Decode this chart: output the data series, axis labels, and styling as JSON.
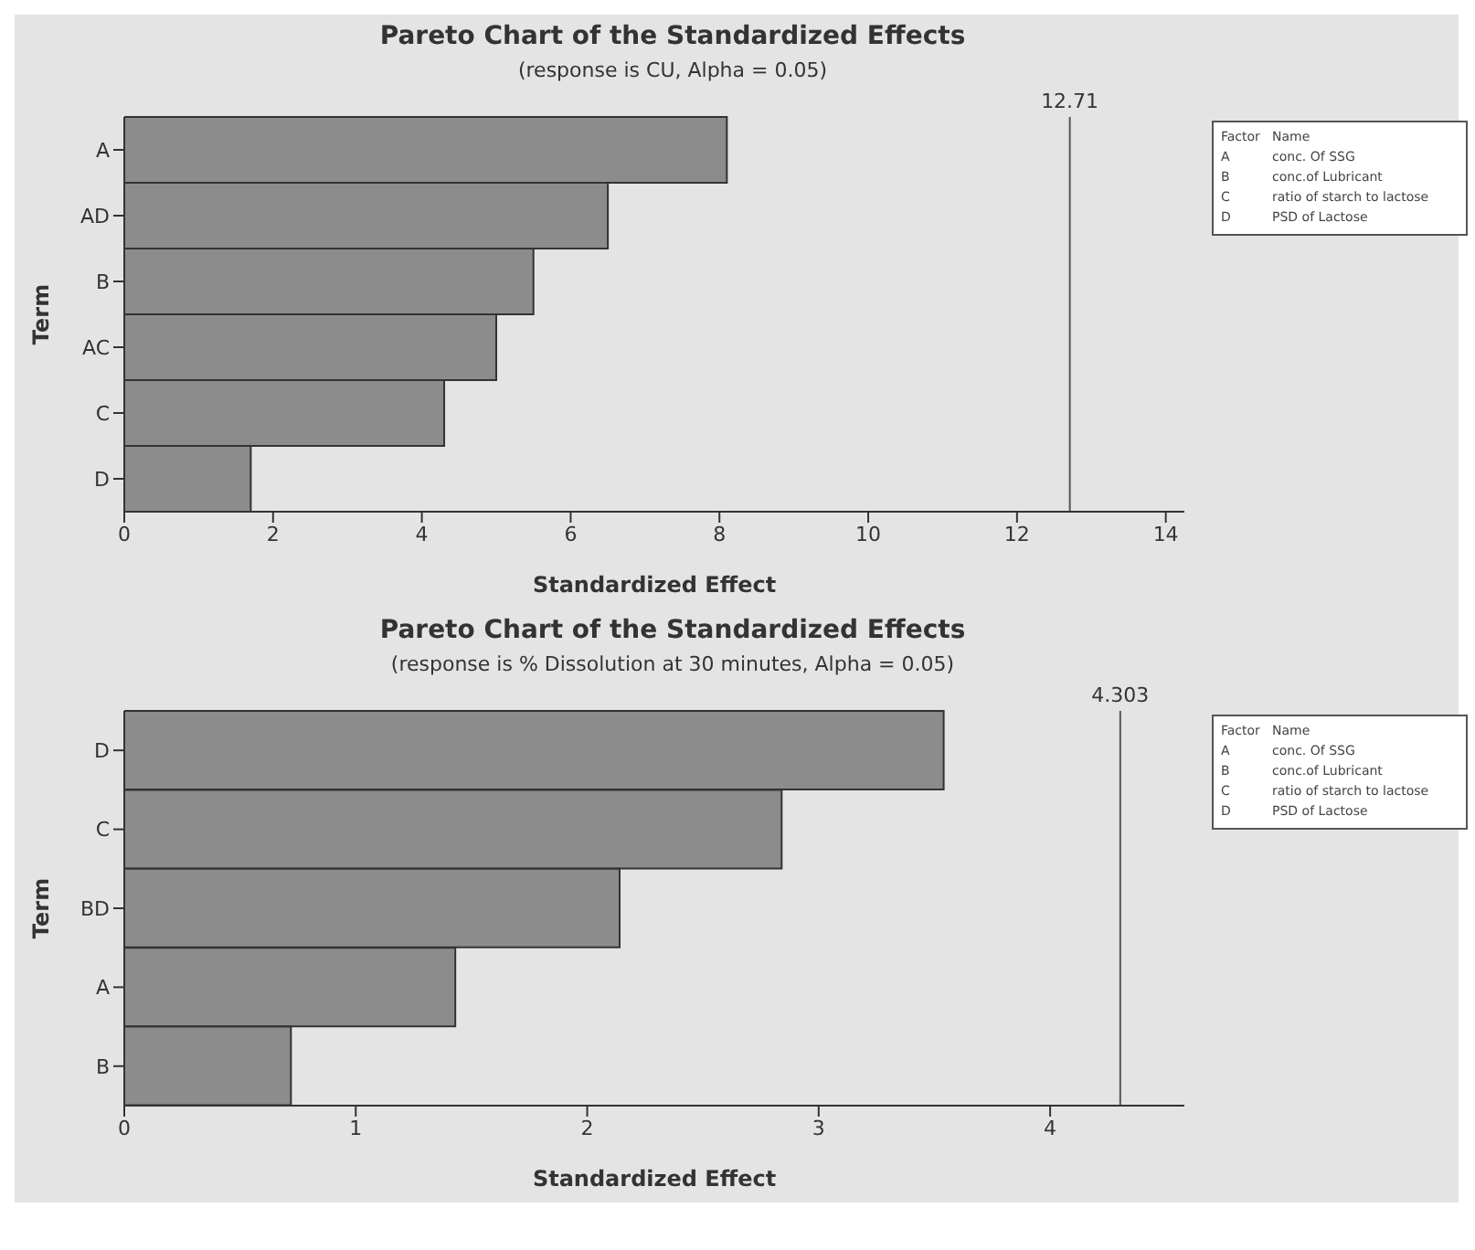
{
  "chart_data": [
    {
      "type": "bar",
      "orientation": "horizontal",
      "title": "Pareto Chart of the Standardized Effects",
      "subtitle": "(response is CU, Alpha = 0.05)",
      "xlabel": "Standardized Effect",
      "ylabel": "Term",
      "categories": [
        "A",
        "AD",
        "B",
        "AC",
        "C",
        "D"
      ],
      "values": [
        8.1,
        6.5,
        5.5,
        5.0,
        4.3,
        1.7
      ],
      "color": "#8c8c8c",
      "xlim": [
        0,
        14.25
      ],
      "xticks": [
        0,
        2,
        4,
        6,
        8,
        10,
        12,
        14
      ],
      "ref_lines": [
        {
          "axis": "x",
          "value": 12.71,
          "label": "12.71",
          "color": "#555555"
        }
      ],
      "annotations": [
        "Factor",
        "Name",
        "A",
        "conc. Of SSG",
        "B",
        "conc.of Lubricant",
        "C",
        "ratio of starch to lactose",
        "D",
        "PSD of Lactose"
      ]
    },
    {
      "type": "bar",
      "orientation": "horizontal",
      "title": "Pareto Chart of the Standardized Effects",
      "subtitle": "(response is % Dissolution at 30 minutes, Alpha = 0.05)",
      "xlabel": "Standardized Effect",
      "ylabel": "Term",
      "categories": [
        "D",
        "C",
        "BD",
        "A",
        "B"
      ],
      "values": [
        3.54,
        2.84,
        2.14,
        1.43,
        0.72
      ],
      "color": "#8c8c8c",
      "xlim": [
        0,
        4.58
      ],
      "xticks": [
        0,
        1,
        2,
        3,
        4
      ],
      "ref_lines": [
        {
          "axis": "x",
          "value": 4.303,
          "label": "4.303",
          "color": "#555555"
        }
      ],
      "annotations": [
        "Factor",
        "Name",
        "A",
        "conc. Of SSG",
        "B",
        "conc.of Lubricant",
        "C",
        "ratio of starch to lactose",
        "D",
        "PSD of Lactose"
      ]
    }
  ]
}
